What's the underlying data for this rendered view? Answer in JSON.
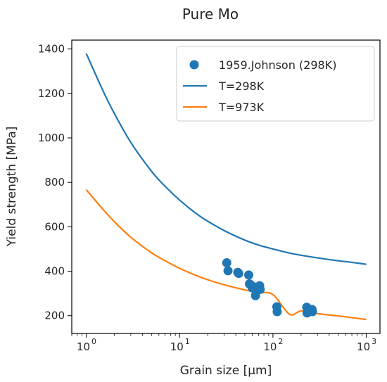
{
  "chart_data": {
    "type": "scatter",
    "title": "Pure Mo",
    "xlabel": "Grain size [μm]",
    "ylabel": "Yield strength [MPa]",
    "xscale": "log",
    "xlim": [
      0.7,
      1400
    ],
    "ylim": [
      120,
      1440
    ],
    "xticks": [
      {
        "value": 1,
        "label": "10",
        "exp": "0"
      },
      {
        "value": 10,
        "label": "10",
        "exp": "1"
      },
      {
        "value": 100,
        "label": "10",
        "exp": "2"
      },
      {
        "value": 1000,
        "label": "10",
        "exp": "3"
      }
    ],
    "yticks": [
      200,
      400,
      600,
      800,
      1000,
      1200,
      1400
    ],
    "legend_position": "top-right",
    "colors": {
      "blue": "#1f77b4",
      "orange": "#ff7f0e"
    },
    "series": [
      {
        "name": "1959.Johnson (298K)",
        "kind": "points",
        "color": "#1f77b4",
        "x": [
          32,
          33,
          42,
          43,
          55,
          56,
          58,
          60,
          62,
          65,
          68,
          72,
          73,
          110,
          111,
          230,
          232,
          235,
          262,
          265
        ],
        "y": [
          438,
          402,
          395,
          390,
          383,
          343,
          338,
          325,
          330,
          290,
          320,
          335,
          318,
          240,
          218,
          238,
          212,
          223,
          228,
          218
        ]
      },
      {
        "name": "T=298K",
        "kind": "line",
        "color": "#1f77b4",
        "x": [
          1,
          1.5,
          2,
          3,
          5,
          7,
          10,
          15,
          20,
          30,
          50,
          70,
          100,
          150,
          200,
          300,
          500,
          700,
          1000
        ],
        "y": [
          1380,
          1215,
          1110,
          980,
          850,
          782,
          720,
          660,
          625,
          583,
          540,
          518,
          500,
          482,
          472,
          460,
          447,
          440,
          431
        ]
      },
      {
        "name": "T=973K",
        "kind": "line",
        "color": "#ff7f0e",
        "x": [
          1,
          1.5,
          2,
          3,
          5,
          7,
          10,
          15,
          20,
          30,
          50,
          70,
          100,
          150,
          200,
          300,
          500,
          700,
          1000
        ],
        "y": [
          767,
          680,
          623,
          553,
          483,
          447,
          413,
          381,
          362,
          339,
          316,
          304,
          295,
          206.5,
          221,
          209,
          199,
          191,
          183
        ]
      }
    ]
  }
}
